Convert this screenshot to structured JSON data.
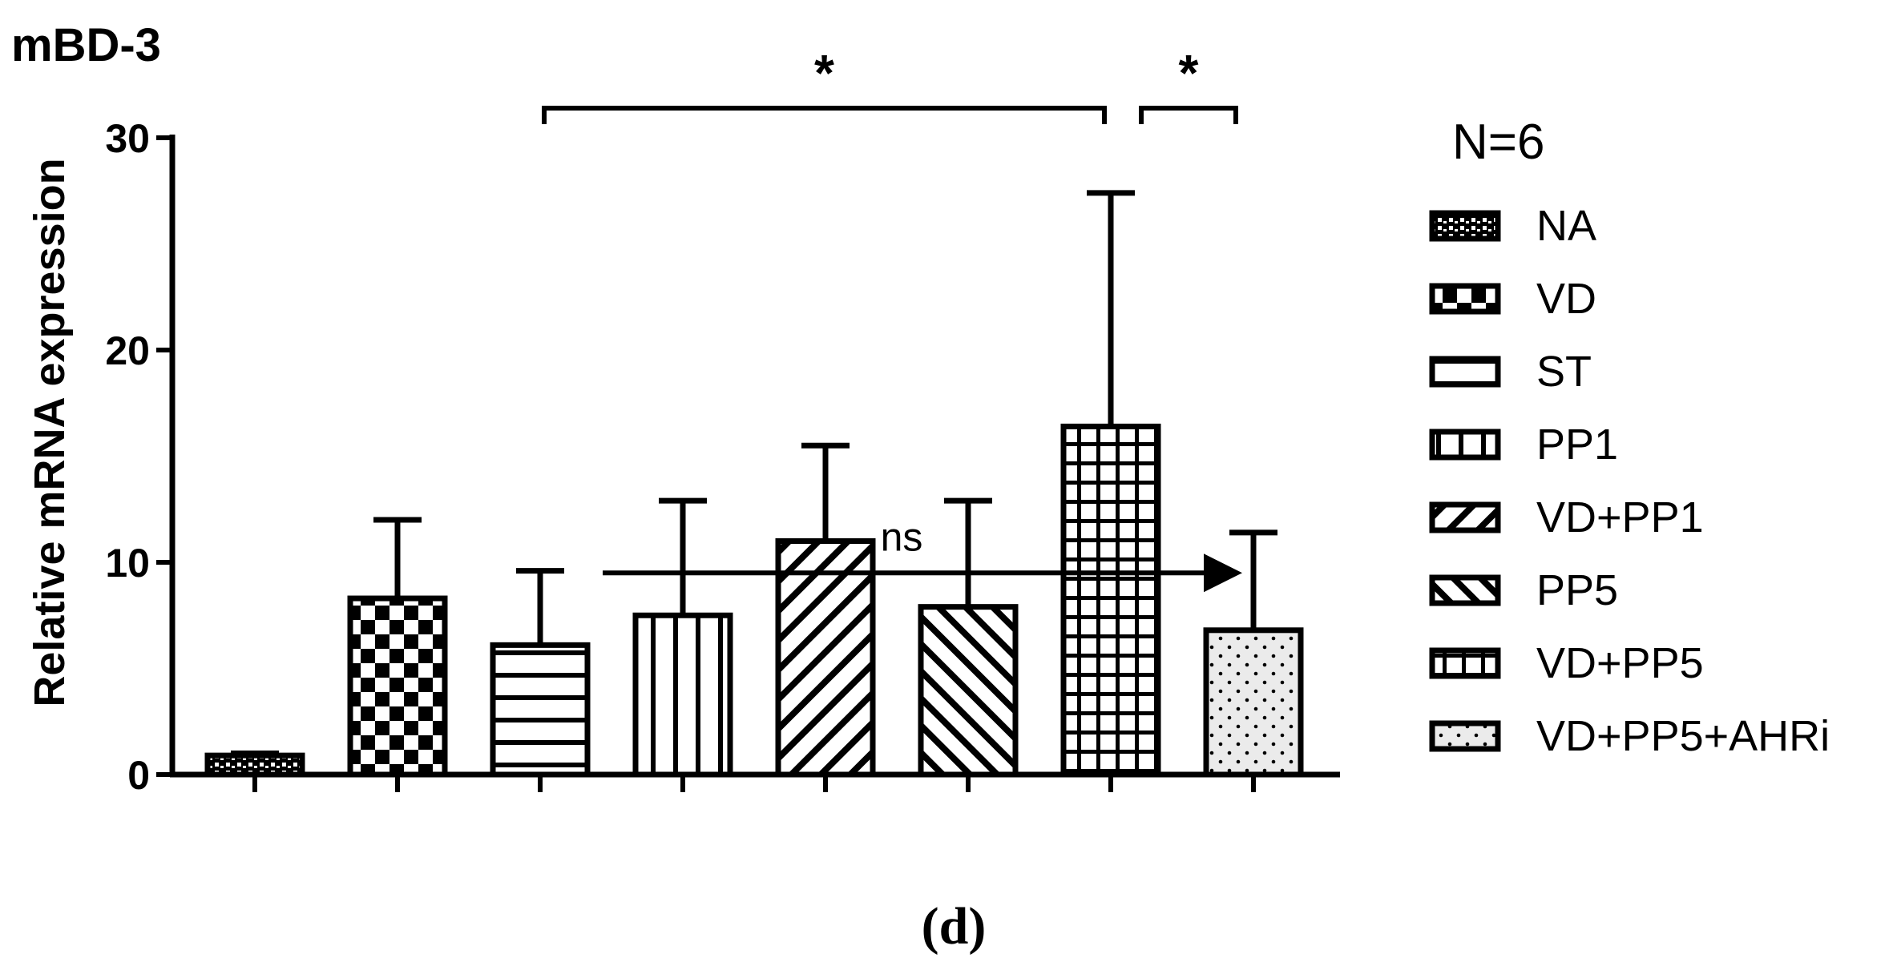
{
  "chart_data": {
    "type": "bar",
    "title": "mBD-3",
    "ylabel": "Relative mRNA expression",
    "xlabel": "",
    "ylim": [
      0,
      30
    ],
    "yticks": [
      0,
      10,
      20,
      30
    ],
    "categories": [
      "NA",
      "VD",
      "ST",
      "PP1",
      "VD+PP1",
      "PP5",
      "VD+PP5",
      "VD+PP5+AHRi"
    ],
    "values": [
      0.9,
      8.3,
      6.1,
      7.5,
      11.0,
      7.9,
      16.4,
      6.8
    ],
    "error_upper": [
      1.0,
      12.0,
      9.6,
      12.9,
      15.5,
      12.9,
      27.4,
      11.4
    ],
    "patterns": [
      "dots-dense",
      "checker",
      "horizontal",
      "vertical",
      "diag-up",
      "diag-down",
      "grid",
      "dots-sparse"
    ],
    "legend": {
      "title": "N=6",
      "entries": [
        "NA",
        "VD",
        "ST",
        "PP1",
        "VD+PP1",
        "PP5",
        "VD+PP5",
        "VD+PP5+AHRi"
      ],
      "position": "right"
    },
    "annotations": {
      "significance": [
        {
          "from": 2,
          "to": 6,
          "label": "*"
        },
        {
          "from": 6,
          "to": 7,
          "label": "*"
        }
      ],
      "trend_arrow": {
        "from": 2,
        "to": 7,
        "y": 9.5,
        "label": "ns"
      }
    },
    "caption": "(d)",
    "grid": false
  },
  "colors": {
    "ink": "#000000",
    "fill_light": "#ebebeb",
    "background": "#ffffff"
  }
}
